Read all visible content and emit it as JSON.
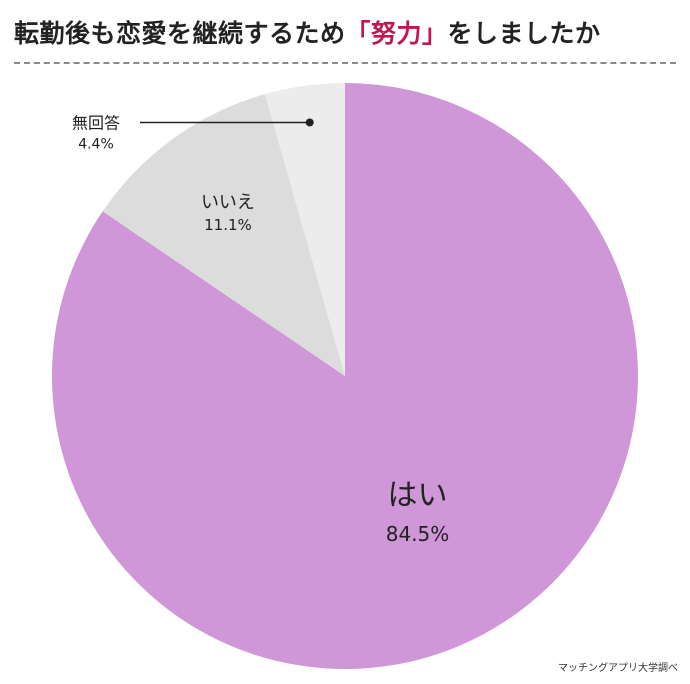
{
  "title": {
    "prefix": "転勤後も恋愛を継続するため",
    "highlight": "「努力」",
    "suffix": "をしましたか"
  },
  "credit": "マッチングアプリ大学調べ",
  "colors": {
    "accent": "#c0174f",
    "divider": "#8a8a8a"
  },
  "chart_data": {
    "type": "pie",
    "title": "転勤後も恋愛を継続するため「努力」をしましたか",
    "slices": [
      {
        "label": "はい",
        "value": 84.5,
        "value_label": "84.5%",
        "color": "#cf97d7"
      },
      {
        "label": "いいえ",
        "value": 11.1,
        "value_label": "11.1%",
        "color": "#dcdcdc"
      },
      {
        "label": "無回答",
        "value": 4.4,
        "value_label": "4.4%",
        "color": "#ececec"
      }
    ],
    "start": "12 o'clock",
    "direction": "clockwise"
  }
}
